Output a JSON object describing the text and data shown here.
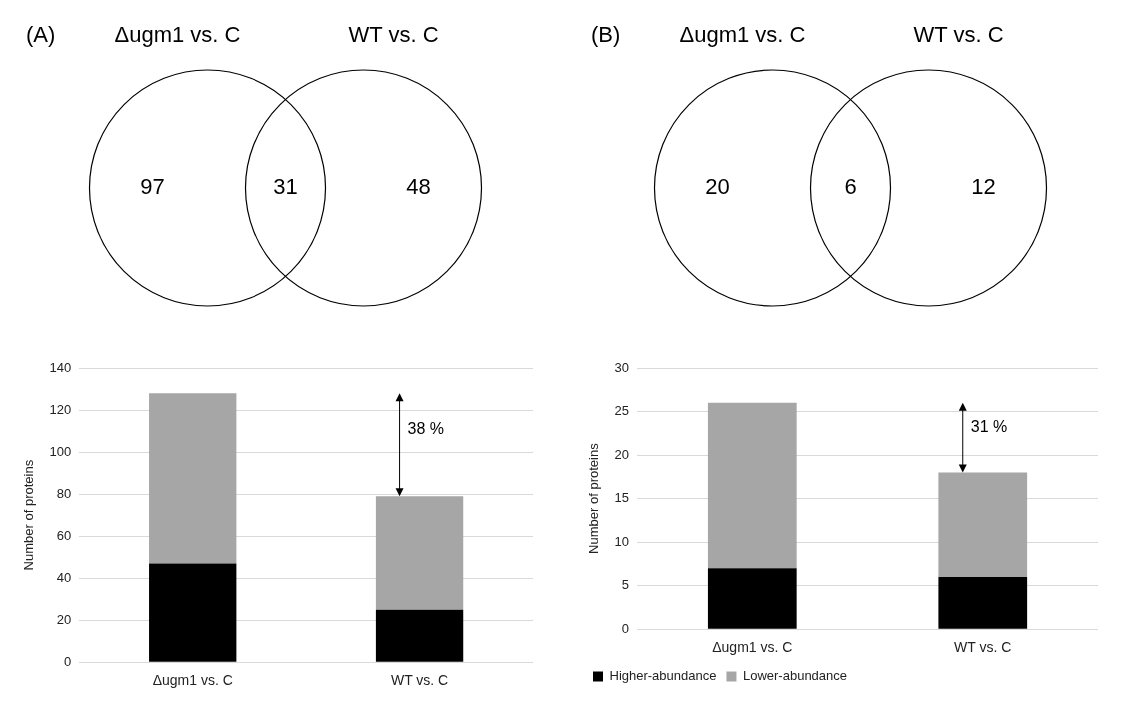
{
  "chart_data": [
    {
      "type": "other",
      "title": "(A)",
      "categories": [
        "Δugm1 vs. C",
        "WT vs. C"
      ],
      "annotations": [
        "97",
        "31",
        "48"
      ]
    },
    {
      "type": "other",
      "title": "(B)",
      "categories": [
        "Δugm1 vs. C",
        "WT vs. C"
      ],
      "annotations": [
        "20",
        "6",
        "12"
      ]
    },
    {
      "type": "bar",
      "stacked": true,
      "categories": [
        "Δugm1 vs. C",
        "WT vs. C"
      ],
      "ylabel": "Number of proteins",
      "ylim": [
        0,
        140
      ],
      "yticks": [
        0,
        20,
        40,
        60,
        80,
        100,
        120,
        140
      ],
      "grid": "y",
      "series": [
        {
          "color": "#000000",
          "values": [
            47,
            25
          ]
        },
        {
          "color": "#a6a6a6",
          "values": [
            81,
            54
          ]
        }
      ],
      "annotations": [
        "38 %"
      ]
    },
    {
      "type": "bar",
      "stacked": true,
      "categories": [
        "Δugm1 vs. C",
        "WT vs. C"
      ],
      "ylabel": "Number of proteins",
      "ylim": [
        0,
        30
      ],
      "yticks": [
        0,
        5,
        10,
        15,
        20,
        25,
        30
      ],
      "grid": "y",
      "legend": "bottom left",
      "series": [
        {
          "name": "Higher-abundance",
          "color": "#000000",
          "values": [
            7,
            6
          ]
        },
        {
          "name": "Lower-abundance",
          "color": "#a6a6a6",
          "values": [
            19,
            12
          ]
        }
      ],
      "annotations": [
        "31 %"
      ]
    }
  ]
}
